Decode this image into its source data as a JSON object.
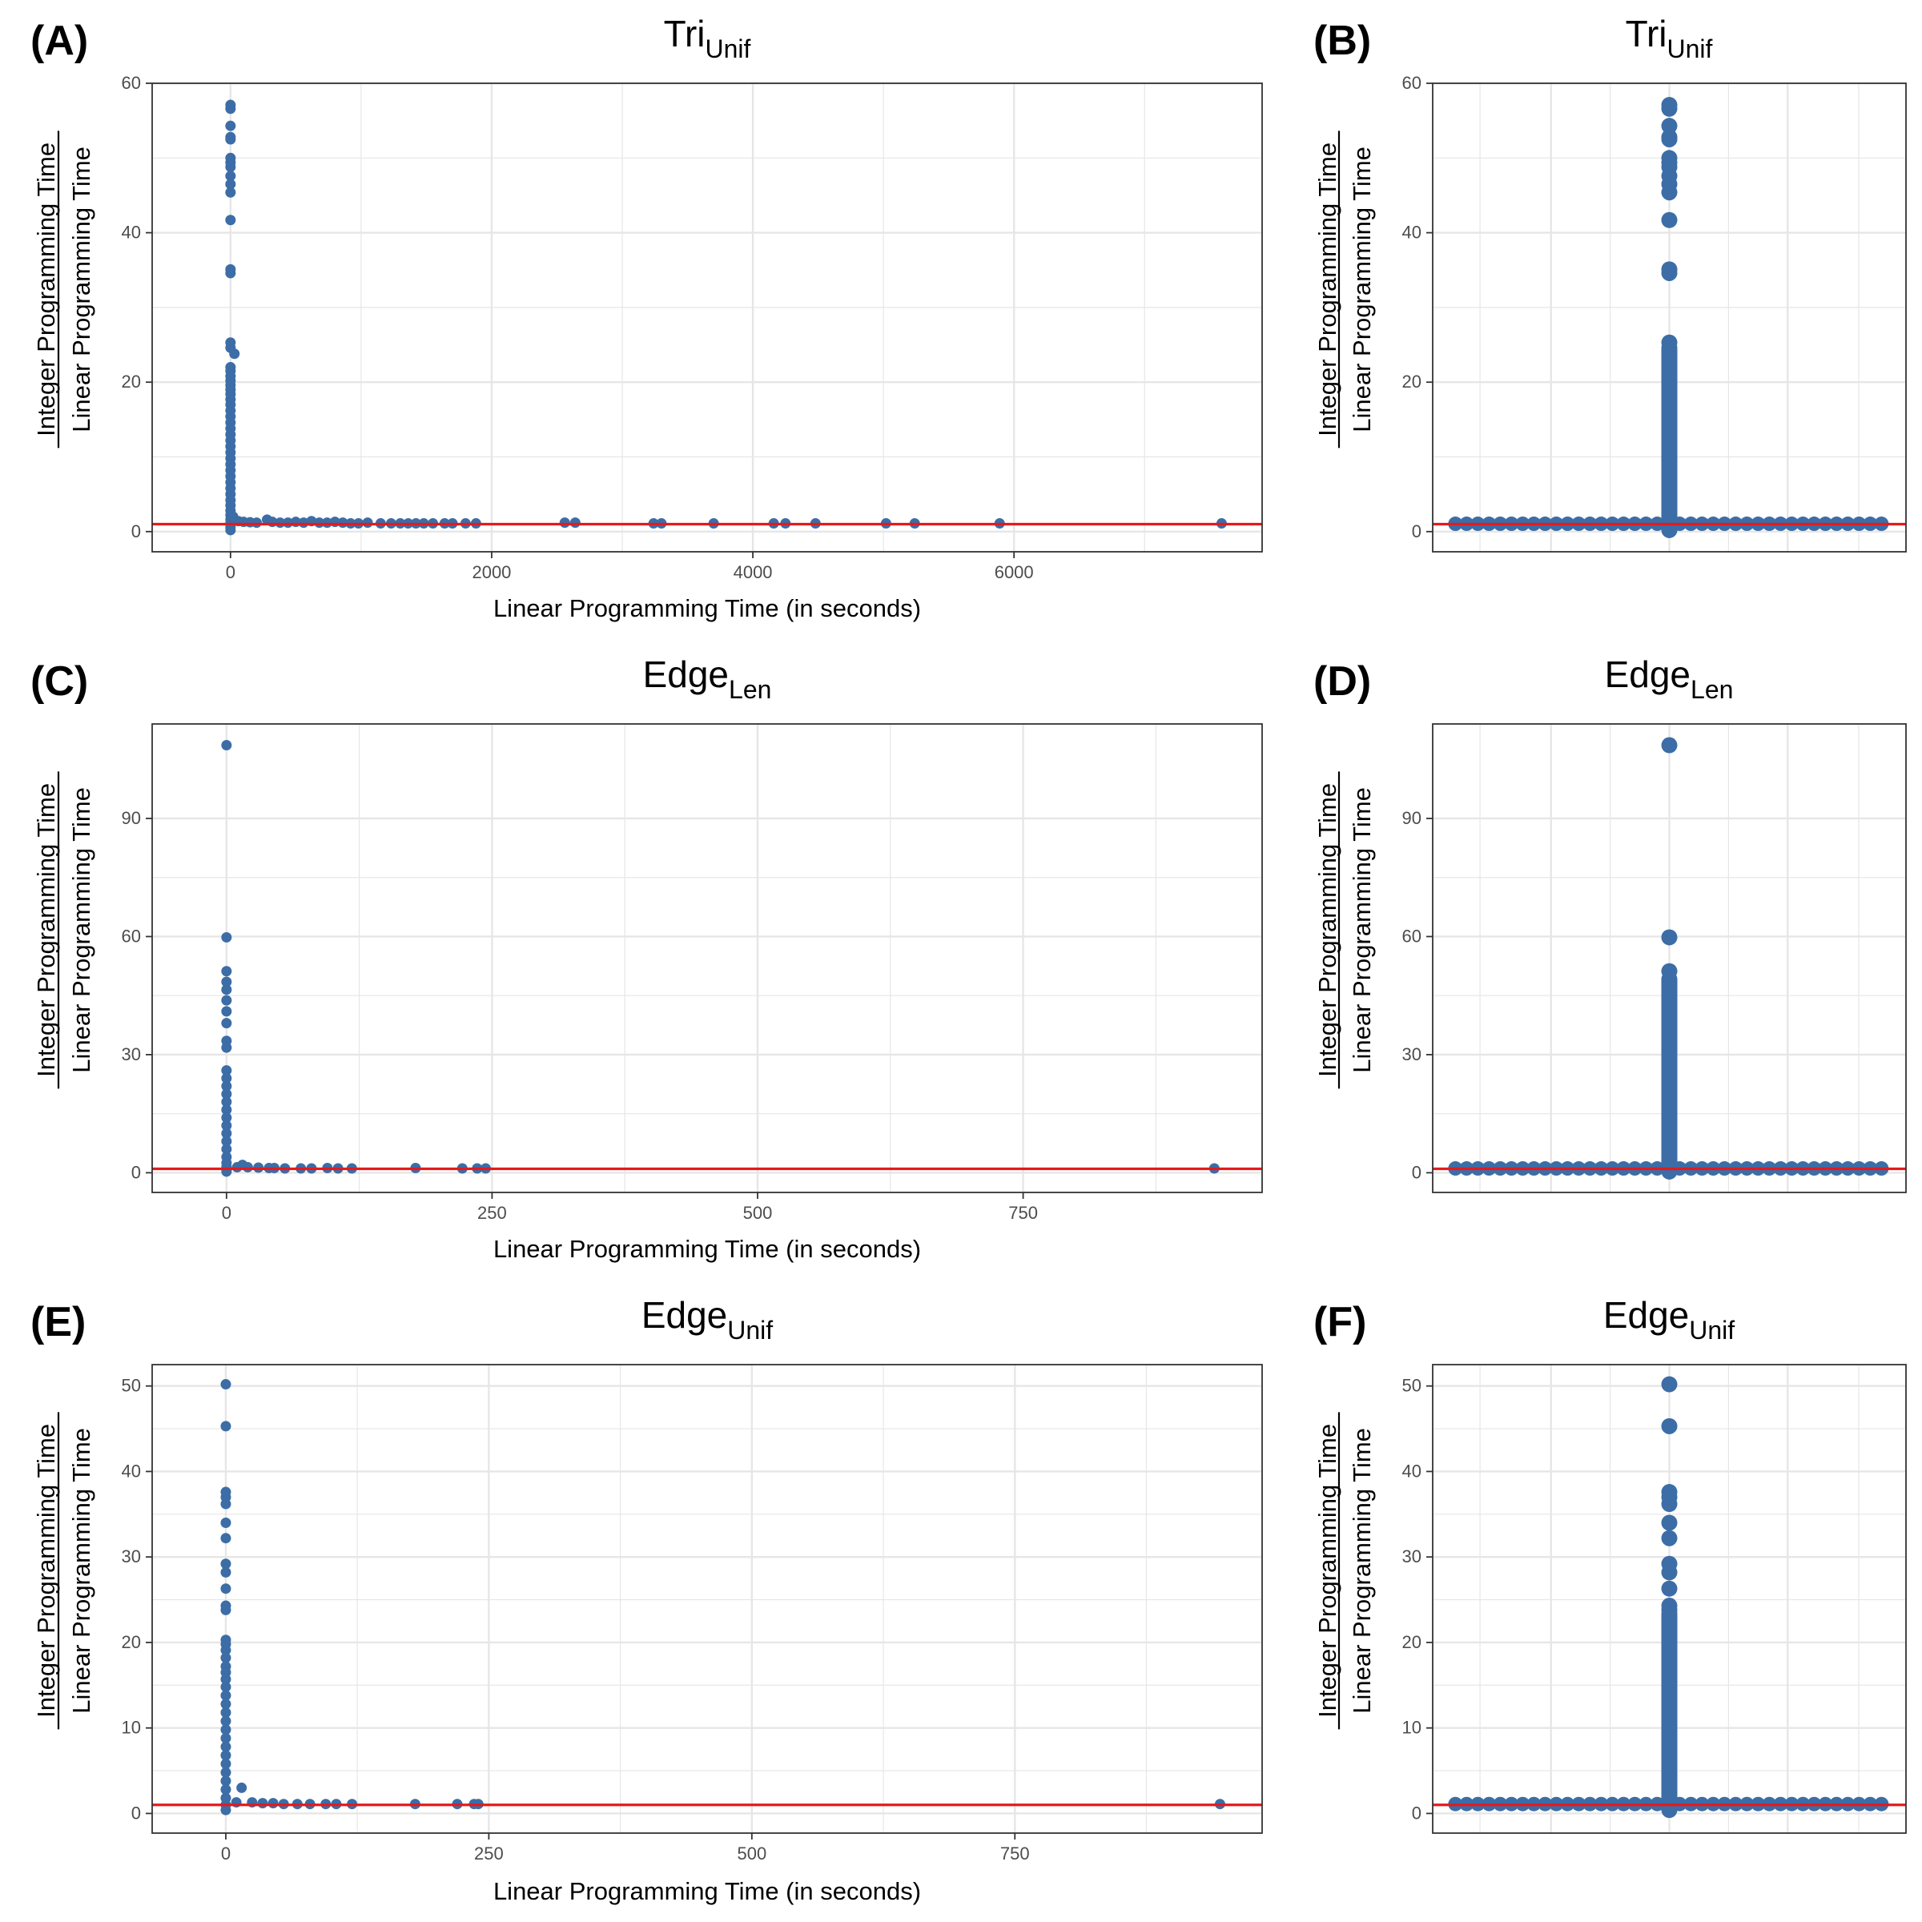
{
  "figure": {
    "ratio_numerator": "Integer Programming Time",
    "ratio_denominator": "Linear Programming Time"
  },
  "colors": {
    "points": "#3C6DA6",
    "reference_line": "#E41A1C",
    "grid": "#E6E6E6",
    "border": "#333333"
  },
  "chart_data": [
    {
      "type": "scatter",
      "panel": "(A)",
      "title_main": "Tri",
      "title_sub": "Unif",
      "xlabel": "Linear Programming Time (in seconds)",
      "ylabel_top": "Integer Programming Time",
      "ylabel_bottom": "Linear Programming Time",
      "xlim": [
        -600,
        7900
      ],
      "ylim": [
        -2.7,
        60
      ],
      "xticks": [
        0,
        2000,
        4000,
        6000
      ],
      "xtick_labels": [
        "0",
        "2000",
        "4000",
        "6000"
      ],
      "yticks": [
        0,
        20,
        40,
        60
      ],
      "ytick_labels": [
        "0",
        "20",
        "40",
        "60"
      ],
      "reference_y": 1,
      "points": [
        [
          0,
          57.1
        ],
        [
          0,
          56.6
        ],
        [
          0,
          54.3
        ],
        [
          0,
          52.8
        ],
        [
          0,
          52.5
        ],
        [
          0,
          50
        ],
        [
          0,
          49.4
        ],
        [
          0,
          48.8
        ],
        [
          0,
          47.6
        ],
        [
          0,
          46.5
        ],
        [
          0,
          45.4
        ],
        [
          0,
          41.7
        ],
        [
          0,
          35.1
        ],
        [
          0,
          34.6
        ],
        [
          0,
          25.3
        ],
        [
          0,
          24.6
        ],
        [
          0,
          22
        ],
        [
          0,
          21.5
        ],
        [
          0,
          20.8
        ],
        [
          0,
          20.2
        ],
        [
          0,
          19.6
        ],
        [
          0,
          19
        ],
        [
          0,
          18.4
        ],
        [
          0,
          17.7
        ],
        [
          0,
          17
        ],
        [
          0,
          16.2
        ],
        [
          0,
          15.4
        ],
        [
          0,
          14.6
        ],
        [
          0,
          13.8
        ],
        [
          0,
          13
        ],
        [
          0,
          12.2
        ],
        [
          0,
          11.4
        ],
        [
          0,
          10.6
        ],
        [
          0,
          9.8
        ],
        [
          0,
          9
        ],
        [
          0,
          8.2
        ],
        [
          0,
          7.4
        ],
        [
          0,
          6.6
        ],
        [
          0,
          5.8
        ],
        [
          0,
          5
        ],
        [
          0,
          4.2
        ],
        [
          0,
          3.5
        ],
        [
          0,
          2.8
        ],
        [
          0,
          2.2
        ],
        [
          0,
          1.6
        ],
        [
          0,
          1.1
        ],
        [
          0,
          0.6
        ],
        [
          0,
          0.2
        ],
        [
          30,
          23.8
        ],
        [
          20,
          2
        ],
        [
          40,
          1.5
        ],
        [
          60,
          1.4
        ],
        [
          100,
          1.3
        ],
        [
          150,
          1.25
        ],
        [
          200,
          1.2
        ],
        [
          280,
          1.6
        ],
        [
          320,
          1.3
        ],
        [
          380,
          1.2
        ],
        [
          440,
          1.2
        ],
        [
          500,
          1.3
        ],
        [
          560,
          1.2
        ],
        [
          620,
          1.4
        ],
        [
          680,
          1.2
        ],
        [
          740,
          1.2
        ],
        [
          800,
          1.3
        ],
        [
          860,
          1.2
        ],
        [
          920,
          1.1
        ],
        [
          980,
          1.1
        ],
        [
          1050,
          1.2
        ],
        [
          1150,
          1.1
        ],
        [
          1230,
          1.1
        ],
        [
          1300,
          1.1
        ],
        [
          1360,
          1.1
        ],
        [
          1420,
          1.1
        ],
        [
          1480,
          1.1
        ],
        [
          1550,
          1.1
        ],
        [
          1640,
          1.1
        ],
        [
          1700,
          1.1
        ],
        [
          1800,
          1.1
        ],
        [
          1880,
          1.1
        ],
        [
          2560,
          1.2
        ],
        [
          2640,
          1.2
        ],
        [
          3240,
          1.1
        ],
        [
          3300,
          1.1
        ],
        [
          3700,
          1.1
        ],
        [
          4160,
          1.1
        ],
        [
          4250,
          1.1
        ],
        [
          4480,
          1.1
        ],
        [
          5020,
          1.1
        ],
        [
          5240,
          1.1
        ],
        [
          5890,
          1.1
        ],
        [
          7590,
          1.1
        ]
      ]
    },
    {
      "type": "scatter",
      "panel": "(B)",
      "title_main": "Tri",
      "title_sub": "Unif",
      "ylabel_top": "Integer Programming Time",
      "ylabel_bottom": "Linear Programming Time",
      "ylim": [
        -2.7,
        60
      ],
      "yticks": [
        0,
        20,
        40,
        60
      ],
      "ytick_labels": [
        "0",
        "20",
        "40",
        "60"
      ],
      "reference_y": 1,
      "categorical_x": true,
      "stem_values": [
        57.1,
        56.6,
        54.3,
        52.8,
        52.5,
        50,
        49.4,
        48.8,
        47.6,
        46.5,
        45.4,
        41.7,
        35.1,
        34.6,
        25.3,
        24.6,
        23.8,
        22,
        20.8,
        19.6,
        18.4,
        17,
        15.4,
        13.8,
        12.2,
        10.6,
        9,
        7.4,
        5.8,
        4.2,
        2.8,
        1.6,
        0.6,
        0.2
      ],
      "band_min": 0.75,
      "band_max": 1.35
    },
    {
      "type": "scatter",
      "panel": "(C)",
      "title_main": "Edge",
      "title_sub": "Len",
      "xlabel": "Linear Programming Time (in seconds)",
      "ylabel_top": "Integer Programming Time",
      "ylabel_bottom": "Linear Programming Time",
      "xlim": [
        -70,
        975
      ],
      "ylim": [
        -5,
        114
      ],
      "xticks": [
        0,
        250,
        500,
        750
      ],
      "xtick_labels": [
        "0",
        "250",
        "500",
        "750"
      ],
      "yticks": [
        0,
        30,
        60,
        90
      ],
      "ytick_labels": [
        "0",
        "30",
        "60",
        "90"
      ],
      "reference_y": 1,
      "points": [
        [
          0,
          108.6
        ],
        [
          0,
          59.8
        ],
        [
          0,
          51.2
        ],
        [
          0,
          48.5
        ],
        [
          0,
          46.5
        ],
        [
          0,
          43.8
        ],
        [
          0,
          41
        ],
        [
          0,
          38
        ],
        [
          0,
          33.5
        ],
        [
          0,
          31.8
        ],
        [
          0,
          26
        ],
        [
          0,
          24
        ],
        [
          0,
          22
        ],
        [
          0,
          20
        ],
        [
          0,
          18
        ],
        [
          0,
          16
        ],
        [
          0,
          14
        ],
        [
          0,
          12
        ],
        [
          0,
          10
        ],
        [
          0,
          8
        ],
        [
          0,
          6
        ],
        [
          0,
          4
        ],
        [
          0,
          2.5
        ],
        [
          0,
          1.5
        ],
        [
          0,
          0.8
        ],
        [
          0,
          0.3
        ],
        [
          10,
          1.4
        ],
        [
          15,
          2
        ],
        [
          20,
          1.4
        ],
        [
          30,
          1.3
        ],
        [
          40,
          1.2
        ],
        [
          45,
          1.2
        ],
        [
          55,
          1.1
        ],
        [
          70,
          1.1
        ],
        [
          80,
          1.1
        ],
        [
          95,
          1.2
        ],
        [
          105,
          1.1
        ],
        [
          118,
          1.1
        ],
        [
          178,
          1.2
        ],
        [
          222,
          1.1
        ],
        [
          236,
          1.1
        ],
        [
          244,
          1.1
        ],
        [
          930,
          1.1
        ]
      ]
    },
    {
      "type": "scatter",
      "panel": "(D)",
      "title_main": "Edge",
      "title_sub": "Len",
      "ylabel_top": "Integer Programming Time",
      "ylabel_bottom": "Linear Programming Time",
      "ylim": [
        -5,
        114
      ],
      "yticks": [
        0,
        30,
        60,
        90
      ],
      "ytick_labels": [
        "0",
        "30",
        "60",
        "90"
      ],
      "reference_y": 1,
      "categorical_x": true,
      "stem_values": [
        108.6,
        59.8,
        51.2,
        48.5,
        46.5,
        43.8,
        41,
        38,
        33.5,
        31.8,
        26,
        24,
        22,
        20,
        18,
        16,
        14,
        12,
        10,
        8,
        6,
        4,
        2.5,
        1.5,
        0.8,
        0.3
      ],
      "band_min": 0.6,
      "band_max": 1.6
    },
    {
      "type": "scatter",
      "panel": "(E)",
      "title_main": "Edge",
      "title_sub": "Unif",
      "xlabel": "Linear Programming Time (in seconds)",
      "ylabel_top": "Integer Programming Time",
      "ylabel_bottom": "Linear Programming Time",
      "xlim": [
        -70,
        985
      ],
      "ylim": [
        -2.3,
        52.5
      ],
      "xticks": [
        0,
        250,
        500,
        750
      ],
      "xtick_labels": [
        "0",
        "250",
        "500",
        "750"
      ],
      "yticks": [
        0,
        10,
        20,
        30,
        40,
        50
      ],
      "ytick_labels": [
        "0",
        "10",
        "20",
        "30",
        "40",
        "50"
      ],
      "reference_y": 1,
      "points": [
        [
          0,
          50.2
        ],
        [
          0,
          45.3
        ],
        [
          0,
          37.6
        ],
        [
          0,
          37
        ],
        [
          0,
          36.2
        ],
        [
          0,
          34
        ],
        [
          0,
          32.2
        ],
        [
          0,
          29.2
        ],
        [
          0,
          28.2
        ],
        [
          0,
          26.3
        ],
        [
          0,
          24.3
        ],
        [
          0,
          23.8
        ],
        [
          0,
          20.3
        ],
        [
          0,
          19.8
        ],
        [
          0,
          19.1
        ],
        [
          0,
          18.2
        ],
        [
          0,
          17.2
        ],
        [
          0,
          16.5
        ],
        [
          0,
          15.7
        ],
        [
          0,
          14.8
        ],
        [
          0,
          13.8
        ],
        [
          0,
          12.8
        ],
        [
          0,
          11.8
        ],
        [
          0,
          10.8
        ],
        [
          0,
          9.8
        ],
        [
          0,
          8.8
        ],
        [
          0,
          7.8
        ],
        [
          0,
          6.8
        ],
        [
          0,
          5.8
        ],
        [
          0,
          4.8
        ],
        [
          0,
          3.8
        ],
        [
          0,
          2.8
        ],
        [
          0,
          1.8
        ],
        [
          0,
          1
        ],
        [
          0,
          0.4
        ],
        [
          15,
          3
        ],
        [
          10,
          1.3
        ],
        [
          25,
          1.3
        ],
        [
          35,
          1.2
        ],
        [
          45,
          1.2
        ],
        [
          55,
          1.1
        ],
        [
          68,
          1.1
        ],
        [
          80,
          1.1
        ],
        [
          95,
          1.1
        ],
        [
          105,
          1.1
        ],
        [
          120,
          1.1
        ],
        [
          180,
          1.1
        ],
        [
          220,
          1.1
        ],
        [
          236,
          1.1
        ],
        [
          240,
          1.1
        ],
        [
          945,
          1.1
        ]
      ]
    },
    {
      "type": "scatter",
      "panel": "(F)",
      "title_main": "Edge",
      "title_sub": "Unif",
      "ylabel_top": "Integer Programming Time",
      "ylabel_bottom": "Linear Programming Time",
      "ylim": [
        -2.3,
        52.5
      ],
      "yticks": [
        0,
        10,
        20,
        30,
        40,
        50
      ],
      "ytick_labels": [
        "0",
        "10",
        "20",
        "30",
        "40",
        "50"
      ],
      "reference_y": 1,
      "categorical_x": true,
      "stem_values": [
        50.2,
        45.3,
        37.6,
        37,
        36.2,
        34,
        32.2,
        29.2,
        28.2,
        26.3,
        24.3,
        23.8,
        20.3,
        19.8,
        19.1,
        18.2,
        17.2,
        16.5,
        15.7,
        14.8,
        13.8,
        12.8,
        11.8,
        10.8,
        9.8,
        8.8,
        7.8,
        6.8,
        5.8,
        4.8,
        3.8,
        2.8,
        1.8,
        1,
        0.4
      ],
      "band_min": 0.6,
      "band_max": 1.6
    }
  ]
}
